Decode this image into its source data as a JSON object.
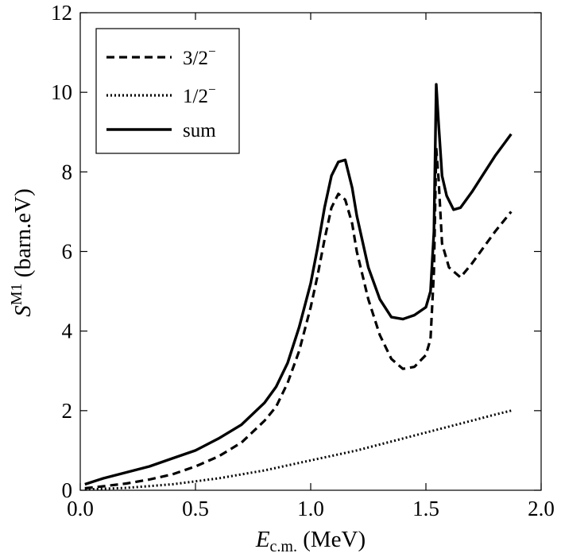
{
  "chart_data": {
    "type": "line",
    "xlim": [
      0.0,
      2.0
    ],
    "ylim": [
      0,
      12
    ],
    "x_ticks": [
      "0.0",
      "0.5",
      "1.0",
      "1.5",
      "2.0"
    ],
    "y_ticks": [
      "0",
      "2",
      "4",
      "6",
      "8",
      "10",
      "12"
    ],
    "x_tick_values": [
      0.0,
      0.5,
      1.0,
      1.5,
      2.0
    ],
    "y_tick_values": [
      0,
      2,
      4,
      6,
      8,
      10,
      12
    ],
    "xlabel": {
      "main": "E",
      "sub": "c.m.",
      "rest": " (MeV)"
    },
    "ylabel": {
      "main": "S",
      "sup": "M1",
      "rest": " (barn.eV)"
    },
    "legend_position": "top-left",
    "series": [
      {
        "name": "3/2",
        "name_sup": "−",
        "style": "dashed",
        "x": [
          0.02,
          0.1,
          0.2,
          0.3,
          0.4,
          0.5,
          0.6,
          0.7,
          0.8,
          0.85,
          0.9,
          0.95,
          1.0,
          1.03,
          1.06,
          1.09,
          1.12,
          1.15,
          1.18,
          1.2,
          1.25,
          1.3,
          1.35,
          1.4,
          1.45,
          1.5,
          1.52,
          1.535,
          1.545,
          1.555,
          1.57,
          1.6,
          1.65,
          1.7,
          1.75,
          1.8,
          1.87
        ],
        "y": [
          0.05,
          0.1,
          0.17,
          0.27,
          0.4,
          0.6,
          0.85,
          1.2,
          1.75,
          2.1,
          2.7,
          3.5,
          4.6,
          5.4,
          6.3,
          7.1,
          7.45,
          7.3,
          6.7,
          6.0,
          4.8,
          3.9,
          3.3,
          3.05,
          3.1,
          3.4,
          3.8,
          5.5,
          8.6,
          7.8,
          6.2,
          5.6,
          5.35,
          5.7,
          6.1,
          6.5,
          7.0
        ]
      },
      {
        "name": "1/2",
        "name_sup": "−",
        "style": "dotted",
        "x": [
          0.02,
          0.2,
          0.4,
          0.6,
          0.8,
          1.0,
          1.2,
          1.4,
          1.6,
          1.8,
          1.87
        ],
        "y": [
          0.02,
          0.06,
          0.15,
          0.3,
          0.5,
          0.75,
          1.0,
          1.3,
          1.6,
          1.9,
          2.0
        ]
      },
      {
        "name": "sum",
        "name_sup": "",
        "style": "solid",
        "x": [
          0.02,
          0.1,
          0.2,
          0.3,
          0.4,
          0.5,
          0.6,
          0.7,
          0.8,
          0.85,
          0.9,
          0.95,
          1.0,
          1.03,
          1.06,
          1.09,
          1.12,
          1.15,
          1.18,
          1.2,
          1.25,
          1.3,
          1.35,
          1.4,
          1.45,
          1.5,
          1.52,
          1.535,
          1.545,
          1.555,
          1.57,
          1.59,
          1.62,
          1.65,
          1.7,
          1.75,
          1.8,
          1.87
        ],
        "y": [
          0.15,
          0.3,
          0.45,
          0.6,
          0.8,
          1.0,
          1.3,
          1.65,
          2.2,
          2.6,
          3.2,
          4.1,
          5.2,
          6.1,
          7.1,
          7.9,
          8.25,
          8.3,
          7.6,
          6.9,
          5.6,
          4.8,
          4.35,
          4.3,
          4.4,
          4.6,
          5.0,
          6.5,
          10.2,
          9.2,
          7.9,
          7.4,
          7.05,
          7.1,
          7.5,
          7.95,
          8.4,
          8.95
        ]
      }
    ]
  }
}
